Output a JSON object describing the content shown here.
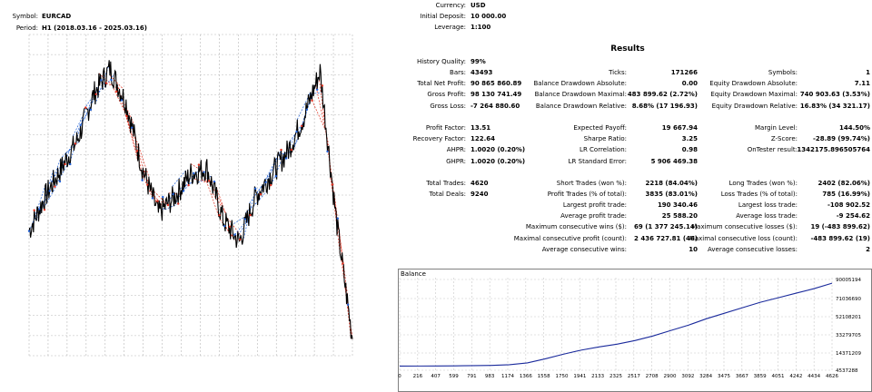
{
  "header_left": {
    "symbol_label": "Symbol:",
    "symbol_value": "EURCAD",
    "period_label": "Period:",
    "period_value": "H1 (2018.03.16 - 2025.03.16)"
  },
  "header_right": {
    "currency_label": "Currency:",
    "currency_value": "USD",
    "deposit_label": "Initial Deposit:",
    "deposit_value": "10 000.00",
    "leverage_label": "Leverage:",
    "leverage_value": "1:100"
  },
  "results_title": "Results",
  "col1": {
    "rows": [
      {
        "label": "History Quality:",
        "value": "99%"
      },
      {
        "label": "Bars:",
        "value": "43493"
      },
      {
        "label": "Total Net Profit:",
        "value": "90 865 860.89"
      },
      {
        "label": "Gross Profit:",
        "value": "98 130 741.49"
      },
      {
        "label": "Gross Loss:",
        "value": "-7 264 880.60"
      },
      {
        "label": "Profit Factor:",
        "value": "13.51"
      },
      {
        "label": "Recovery Factor:",
        "value": "122.64"
      },
      {
        "label": "AHPR:",
        "value": "1.0020 (0.20%)"
      },
      {
        "label": "GHPR:",
        "value": "1.0020 (0.20%)"
      },
      {
        "label": "Total Trades:",
        "value": "4620"
      },
      {
        "label": "Total Deals:",
        "value": "9240"
      }
    ]
  },
  "col2": {
    "rows": [
      {
        "label": "Ticks:",
        "value": "171266"
      },
      {
        "label": "Balance Drawdown Absolute:",
        "value": "0.00"
      },
      {
        "label": "Balance Drawdown Maximal:",
        "value": "483 899.62 (2.72%)"
      },
      {
        "label": "Balance Drawdown Relative:",
        "value": "8.68% (17 196.93)"
      },
      {
        "label": "Expected Payoff:",
        "value": "19 667.94"
      },
      {
        "label": "Sharpe Ratio:",
        "value": "3.25"
      },
      {
        "label": "LR Correlation:",
        "value": "0.98"
      },
      {
        "label": "LR Standard Error:",
        "value": "5 906 469.38"
      },
      {
        "label": "Short Trades (won %):",
        "value": "2218 (84.04%)"
      },
      {
        "label": "Profit Trades (% of total):",
        "value": "3835 (83.01%)"
      },
      {
        "label": "Largest profit trade:",
        "value": "190 340.46"
      },
      {
        "label": "Average profit trade:",
        "value": "25 588.20"
      },
      {
        "label": "Maximum consecutive wins ($):",
        "value": "69 (1 377 245.14)"
      },
      {
        "label": "Maximal consecutive profit (count):",
        "value": "2 436 727.81 (46)"
      },
      {
        "label": "Average consecutive wins:",
        "value": "10"
      }
    ]
  },
  "col3": {
    "rows": [
      {
        "label": "Symbols:",
        "value": "1"
      },
      {
        "label": "Equity Drawdown Absolute:",
        "value": "7.11"
      },
      {
        "label": "Equity Drawdown Maximal:",
        "value": "740 903.63 (3.53%)"
      },
      {
        "label": "Equity Drawdown Relative:",
        "value": "16.83% (34 321.17)"
      },
      {
        "label": "Margin Level:",
        "value": "144.50%"
      },
      {
        "label": "Z-Score:",
        "value": "-28.89 (99.74%)"
      },
      {
        "label": "OnTester result:",
        "value": "1342175.896505764"
      },
      {
        "label": "Long Trades (won %):",
        "value": "2402 (82.06%)"
      },
      {
        "label": "Loss Trades (% of total):",
        "value": "785 (16.99%)"
      },
      {
        "label": "Largest loss trade:",
        "value": "-108 902.52"
      },
      {
        "label": "Average loss trade:",
        "value": "-9 254.62"
      },
      {
        "label": "Maximum consecutive losses ($):",
        "value": "19 (-483 899.62)"
      },
      {
        "label": "Maximal consecutive loss (count):",
        "value": "-483 899.62 (19)"
      },
      {
        "label": "Average consecutive losses:",
        "value": "2"
      }
    ]
  },
  "chart_data": [
    {
      "type": "line",
      "title": "",
      "xlabel": "",
      "ylabel": "",
      "grid": true,
      "x_axis": "time (2018.03.16 - 2025.03.16)",
      "x": [
        0,
        5,
        10,
        15,
        20,
        25,
        30,
        35,
        40,
        45,
        50,
        55,
        60,
        65,
        70,
        75,
        80,
        85,
        90,
        95,
        100
      ],
      "series": [
        {
          "values": [
            0.4,
            0.52,
            0.62,
            0.72,
            0.88,
            0.97,
            0.85,
            0.62,
            0.46,
            0.52,
            0.6,
            0.62,
            0.44,
            0.36,
            0.52,
            0.6,
            0.68,
            0.8,
            0.96,
            0.44,
            0.02
          ]
        }
      ],
      "ylim": [
        0,
        1
      ],
      "colors": {
        "price": "#000000",
        "buy": "#1f5fd6",
        "sell": "#e0301f"
      }
    },
    {
      "type": "line",
      "title": "Balance",
      "x_ticks": [
        "0",
        "216",
        "407",
        "599",
        "791",
        "983",
        "1174",
        "1366",
        "1558",
        "1750",
        "1941",
        "2133",
        "2325",
        "2517",
        "2708",
        "2900",
        "3092",
        "3284",
        "3475",
        "3667",
        "3859",
        "4051",
        "4242",
        "4434",
        "4626"
      ],
      "y_ticks": [
        "90005194",
        "71036690",
        "52108201",
        "33279705",
        "14371209",
        "4537288"
      ],
      "x": [
        0,
        216,
        407,
        599,
        791,
        983,
        1174,
        1366,
        1558,
        1750,
        1941,
        2133,
        2325,
        2517,
        2708,
        2900,
        3092,
        3284,
        3475,
        3667,
        3859,
        4051,
        4242,
        4434,
        4626
      ],
      "series": [
        {
          "name": "Balance",
          "values": [
            10000,
            60000,
            150000,
            300000,
            500000,
            800000,
            1500000,
            3500000,
            8000000,
            13000000,
            17500000,
            21000000,
            24000000,
            28000000,
            33000000,
            39000000,
            45000000,
            52000000,
            58000000,
            64000000,
            70000000,
            75000000,
            80000000,
            85000000,
            90875860
          ]
        }
      ],
      "ylim": [
        -4537288,
        97000000
      ],
      "grid": true,
      "line_color": "#1a2a9c"
    }
  ]
}
